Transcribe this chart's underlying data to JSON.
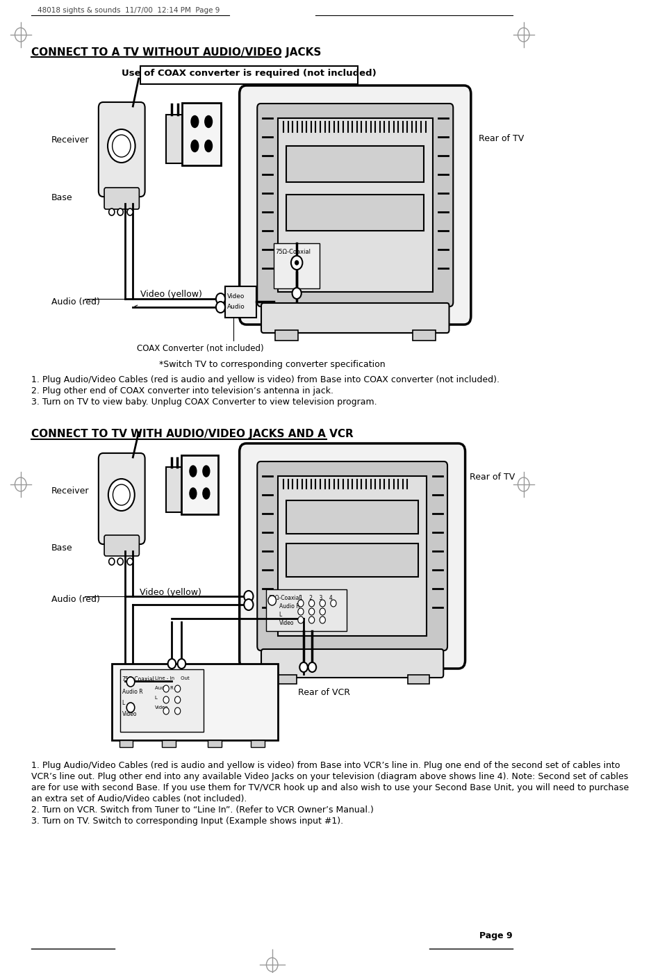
{
  "page_header": "48018 sights & sounds  11/7/00  12:14 PM  Page 9",
  "section1_title": "CONNECT TO A TV WITHOUT AUDIO/VIDEO JACKS",
  "section1_notice": "Use of COAX converter is required (not included)",
  "section1_note": "*Switch TV to corresponding converter specification",
  "section1_steps": [
    "1. Plug Audio/Video Cables (red is audio and yellow is video) from Base into COAX converter (not included).",
    "2. Plug other end of COAX converter into television’s antenna in jack.",
    "3. Turn on TV to view baby. Unplug COAX Converter to view television program."
  ],
  "section1_labels": {
    "receiver": "Receiver",
    "base": "Base",
    "audio_red": "Audio (red)",
    "video_yellow": "Video (yellow)",
    "rear_tv": "Rear of TV",
    "coax_converter": "COAX Converter (not included)"
  },
  "section2_title": "CONNECT TO TV WITH AUDIO/VIDEO JACKS AND A VCR",
  "section2_steps": [
    "1. Plug Audio/Video Cables (red is audio and yellow is video) from Base into VCR’s line in. Plug one end of the second set of cables into",
    "VCR’s line out. Plug other end into any available Video Jacks on your television (diagram above shows line 4). Note: Second set of cables",
    "are for use with second Base. If you use them for TV/VCR hook up and also wish to use your Second Base Unit, you will need to purchase",
    "an extra set of Audio/Video cables (not included).",
    "2. Turn on VCR. Switch from Tuner to “Line In”. (Refer to VCR Owner’s Manual.)",
    "3. Turn on TV. Switch to corresponding Input (Example shows input #1)."
  ],
  "section2_labels": {
    "receiver": "Receiver",
    "base": "Base",
    "audio_red": "Audio (red)",
    "video_yellow": "Video (yellow)",
    "rear_tv": "Rear of TV",
    "rear_vcr": "Rear of VCR"
  },
  "page_number": "Page 9",
  "bg_color": "#ffffff"
}
